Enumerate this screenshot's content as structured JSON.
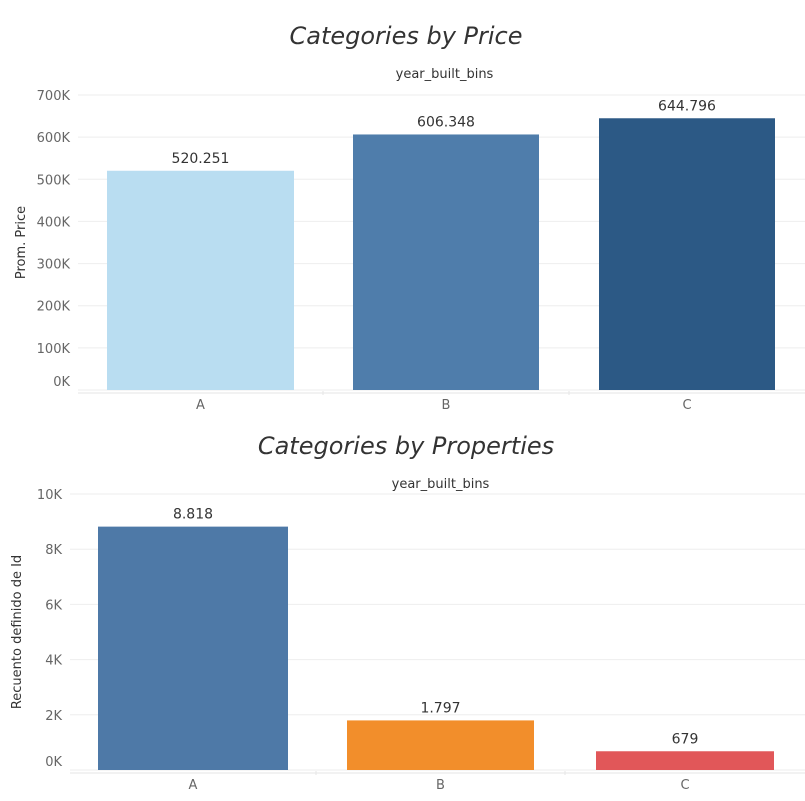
{
  "chart_data": [
    {
      "type": "bar",
      "title": "Categories by Price",
      "column_header": "year_built_bins",
      "ylabel": "Prom. Price",
      "ylim": [
        0,
        700000
      ],
      "yticks": [
        0,
        100000,
        200000,
        300000,
        400000,
        500000,
        600000,
        700000
      ],
      "ytick_labels": [
        "0K",
        "100K",
        "200K",
        "300K",
        "400K",
        "500K",
        "600K",
        "700K"
      ],
      "categories": [
        "A",
        "B",
        "C"
      ],
      "values": [
        520251,
        606348,
        644796
      ],
      "data_labels": [
        "520.251",
        "606.348",
        "644.796"
      ],
      "colors": [
        "#b9ddf1",
        "#4f7dab",
        "#2c5985"
      ],
      "grid": true
    },
    {
      "type": "bar",
      "title": "Categories by Properties",
      "column_header": "year_built_bins",
      "ylabel": "Recuento definido de Id",
      "ylim": [
        0,
        10000
      ],
      "yticks": [
        0,
        2000,
        4000,
        6000,
        8000,
        10000
      ],
      "ytick_labels": [
        "0K",
        "2K",
        "4K",
        "6K",
        "8K",
        "10K"
      ],
      "categories": [
        "A",
        "B",
        "C"
      ],
      "values": [
        8818,
        1797,
        679
      ],
      "data_labels": [
        "8.818",
        "1.797",
        "679"
      ],
      "colors": [
        "#4e79a7",
        "#f28e2b",
        "#e15759"
      ],
      "grid": true
    }
  ]
}
